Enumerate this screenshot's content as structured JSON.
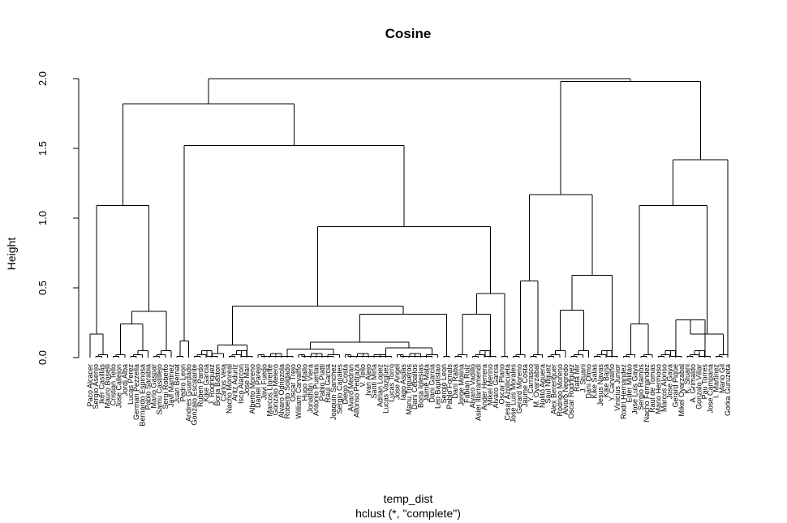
{
  "chart_data": {
    "type": "dendrogram",
    "title": "Cosine",
    "xlabel": "temp_dist",
    "sublabel": "hclust (*, \"complete\")",
    "ylabel": "Height",
    "ylim": [
      0,
      2.0
    ],
    "yticks": [
      0.0,
      0.5,
      1.0,
      1.5,
      2.0
    ],
    "ytick_labels": [
      "0.0",
      "0.5",
      "1.0",
      "1.5",
      "2.0"
    ],
    "leaves": [
      "Paco Alcacer",
      "Sergio Asenjo",
      "Iker Casillas",
      "Mauro Boselli",
      "Cristian Tello",
      "Jose Callejon",
      "Jordi Alba",
      "Lucas Perez",
      "German Pezzella",
      "Bernardo Espinosa",
      "Pablo Sarabia",
      "Mario Gaspar",
      "Samu Castillejo",
      "Sergi Roberto",
      "Javi Martinez",
      "Juan Bernat",
      "Pedro Leon",
      "Andres Guardado",
      "Gonzalo Escalante",
      "Ruben Pardo",
      "Kike Garcia",
      "J. Rodriguez",
      "Borja Baston",
      "Carlos Vela",
      "Nacho Monreal",
      "Aritz Aduriz",
      "Isco Alarcon",
      "Jose Mari",
      "Alberto Moreno",
      "Daniel Parejo",
      "Javi Fuego",
      "Marcos Llorente",
      "Gonzalo Melero",
      "Alvaro Odriozola",
      "Roberto Soldado",
      "Oscar Trejo",
      "William Carvalho",
      "Hugo Mallo",
      "Jonathan Viera",
      "Antonio Puertas",
      "Pablo Piatti",
      "Raul Garcia",
      "Joaquin Sanchez",
      "Sergio Canales",
      "Diego Costa",
      "Alvaro Medran",
      "Alfonso Pedraza",
      "V. Tello",
      "Ivan Alejo",
      "Santi Mina",
      "Adrian Lopez",
      "Lucas Vazquez",
      "Lucas Torro",
      "Jose Angel",
      "Iago Aspas",
      "Manu Trigueros",
      "Dani Ceballos",
      "Borja Iglesias",
      "Jaime Mata",
      "Dani Garcia",
      "Leo Baptistao",
      "Sergio Leon",
      "Pablo Fornals",
      "Dani Raba",
      "Jorge Molina",
      "Fabian Ruiz",
      "Alvaro Vadillo",
      "Asier Illarramendi",
      "Ander Herrera",
      "Mikel Merino",
      "Alvaro Garcia",
      "Oscar Plano",
      "Cesar Azpilicueta",
      "Jose Luis Morales",
      "Gerard Moreno",
      "Jaume Costa",
      "Y. Carrasco",
      "M. Oyarzabal",
      "Nolito Aguera",
      "Saul Niguez",
      "Alex Berenguer",
      "Rodrigo Moreno",
      "Alvaro Negredo",
      "Oscar Rodriguez",
      "Rafa Mir",
      "J. Stuani",
      "Dani Olmo",
      "Kike Salas",
      "Jesus Navas",
      "Kike Barja",
      "Y. Carvalho",
      "Vinicius Junior",
      "Rodri Hernandez",
      "Eder Militao",
      "Jose Luis Gaya",
      "Sergio Ramos",
      "Nacho Fernandez",
      "Raul de Tomas",
      "Mario Hermoso",
      "Marcos Alonso",
      "Jose Gaya",
      "Gerard Pique",
      "Mikel Oyarzabal",
      "K. Stuani",
      "A. Grimaldo",
      "Gonzalo Villar",
      "Pau Torres",
      "Jose Campana",
      "I. Martinez",
      "Mario Gil",
      "Gorka Guruzeta"
    ],
    "merge_heights_visible": [
      2.0,
      1.98,
      1.82,
      1.52,
      1.42,
      1.17,
      1.09,
      1.09,
      0.94,
      0.59,
      0.55,
      0.46,
      0.37,
      0.34,
      0.33,
      0.31,
      0.3,
      0.28,
      0.27,
      0.24,
      0.24,
      0.22,
      0.17,
      0.17,
      0.16,
      0.12,
      0.11,
      0.09,
      0.08,
      0.07,
      0.06,
      0.05,
      0.04,
      0.03,
      0.02,
      0.01
    ]
  }
}
